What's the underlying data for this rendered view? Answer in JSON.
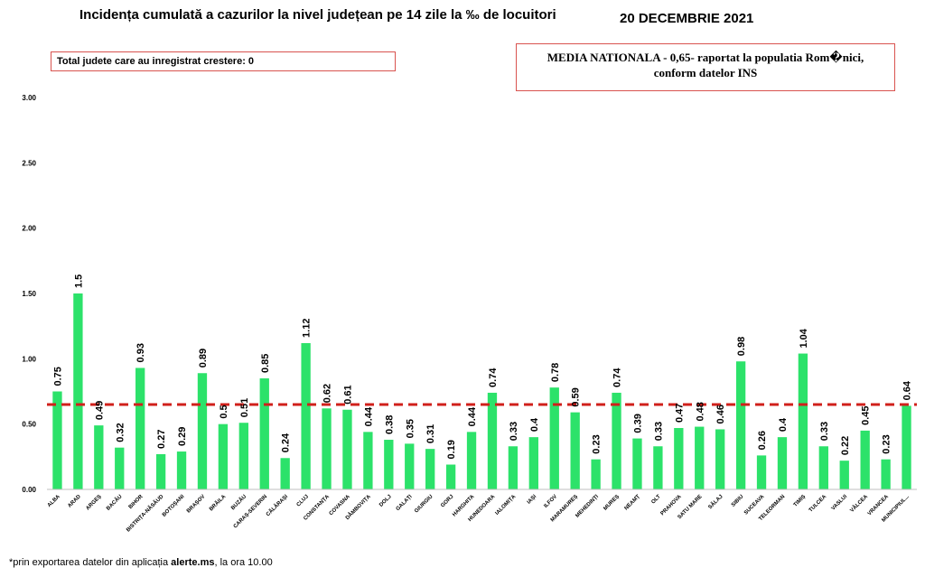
{
  "header": {
    "title": "Incidența cumulată a cazurilor la nivel județean pe 14 zile la ‰ de locuitori",
    "date": "20 DECEMBRIE 2021"
  },
  "info_box": {
    "text": "Total judete care au inregistrat crestere: 0"
  },
  "national_box": {
    "line1": "MEDIA NATIONALA - 0,65-  raportat la populatia Rom�nici,",
    "line2": "conform datelor INS"
  },
  "footnote": {
    "prefix": "*prin exportarea datelor din aplicația ",
    "app": "alerte.ms",
    "suffix": ", la ora 10.00"
  },
  "colors": {
    "bar": "#2ce26a",
    "reference_line": "#d0201b",
    "box_border": "#d9534f"
  },
  "chart_data": {
    "type": "bar",
    "categories": [
      "ALBA",
      "ARAD",
      "ARGEȘ",
      "BACĂU",
      "BIHOR",
      "BISTRIȚA-NĂSĂUD",
      "BOTOȘANI",
      "BRAȘOV",
      "BRĂILA",
      "BUZĂU",
      "CARAȘ-SEVERIN",
      "CĂLĂRAȘI",
      "CLUJ",
      "CONSTANȚA",
      "COVASNA",
      "DÂMBOVIȚA",
      "DOLJ",
      "GALAȚI",
      "GIURGIU",
      "GORJ",
      "HARGHITA",
      "HUNEDOARA",
      "IALOMIȚA",
      "IAȘI",
      "ILFOV",
      "MARAMUREȘ",
      "MEHEDINȚI",
      "MUREȘ",
      "NEAMȚ",
      "OLT",
      "PRAHOVA",
      "SATU MARE",
      "SĂLAJ",
      "SIBIU",
      "SUCEAVA",
      "TELEORMAN",
      "TIMIȘ",
      "TULCEA",
      "VASLUI",
      "VÂLCEA",
      "VRANCEA",
      "MUNICIPIUL..."
    ],
    "values": [
      0.75,
      1.5,
      0.49,
      0.32,
      0.93,
      0.27,
      0.29,
      0.89,
      0.5,
      0.51,
      0.85,
      0.24,
      1.12,
      0.62,
      0.61,
      0.44,
      0.38,
      0.35,
      0.31,
      0.19,
      0.44,
      0.74,
      0.33,
      0.4,
      0.78,
      0.59,
      0.23,
      0.74,
      0.39,
      0.33,
      0.47,
      0.48,
      0.46,
      0.98,
      0.26,
      0.4,
      1.04,
      0.33,
      0.22,
      0.45,
      0.23,
      0.64
    ],
    "labels": [
      "0.75",
      "1.5",
      "0.49",
      "0.32",
      "0.93",
      "0.27",
      "0.29",
      "0.89",
      "0.5",
      "0.51",
      "0.85",
      "0.24",
      "1.12",
      "0.62",
      "0.61",
      "0.44",
      "0.38",
      "0.35",
      "0.31",
      "0.19",
      "0.44",
      "0.74",
      "0.33",
      "0.4",
      "0.78",
      "0.59",
      "0.23",
      "0.74",
      "0.39",
      "0.33",
      "0.47",
      "0.48",
      "0.46",
      "0.98",
      "0.26",
      "0.4",
      "1.04",
      "0.33",
      "0.22",
      "0.45",
      "0.23",
      "0.64"
    ],
    "reference_value": 0.65,
    "yticks": [
      "0.00",
      "0.50",
      "1.00",
      "1.50",
      "2.00",
      "2.50",
      "3.00"
    ],
    "ylim": [
      0,
      3
    ],
    "xlabel": "",
    "ylabel": "",
    "grid": false
  }
}
